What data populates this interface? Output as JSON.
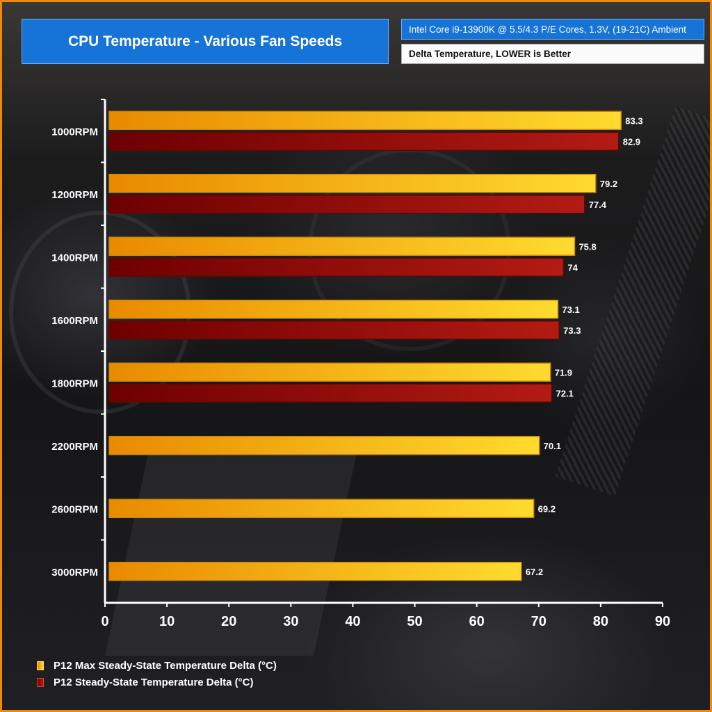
{
  "header": {
    "title": "CPU Temperature - Various Fan Speeds",
    "info": "Intel Core i9-13900K @ 5.5/4.3 P/E Cores, 1.3V, (19-21C) Ambient",
    "note": "Delta Temperature, LOWER is Better"
  },
  "colors": {
    "accent": "#1673d8",
    "border": "#f08a00",
    "series0_start": "#e98a00",
    "series0_end": "#ffd52a",
    "series1_start": "#7a0000",
    "series1_end": "#b31b14"
  },
  "chart_data": {
    "type": "bar",
    "orientation": "horizontal",
    "title": "CPU Temperature - Various Fan Speeds",
    "xlabel": "",
    "ylabel": "",
    "xlim": [
      0,
      90
    ],
    "xticks": [
      0,
      10,
      20,
      30,
      40,
      50,
      60,
      70,
      80,
      90
    ],
    "categories": [
      "1000RPM",
      "1200RPM",
      "1400RPM",
      "1600RPM",
      "1800RPM",
      "2200RPM",
      "2600RPM",
      "3000RPM"
    ],
    "series": [
      {
        "name": "P12 Max Steady-State Temperature Delta (°C)",
        "values": [
          83.3,
          79.2,
          75.8,
          73.1,
          71.9,
          70.1,
          69.2,
          67.2
        ]
      },
      {
        "name": "P12 Steady-State Temperature Delta (°C)",
        "values": [
          82.9,
          77.4,
          74,
          73.3,
          72.1,
          null,
          null,
          null
        ]
      }
    ],
    "data_labels": [
      [
        "83.3",
        "79.2",
        "75.8",
        "73.1",
        "71.9",
        "70.1",
        "69.2",
        "67.2"
      ],
      [
        "82.9",
        "77.4",
        "74",
        "73.3",
        "72.1",
        null,
        null,
        null
      ]
    ],
    "grid": false,
    "legend_position": "bottom-left"
  }
}
